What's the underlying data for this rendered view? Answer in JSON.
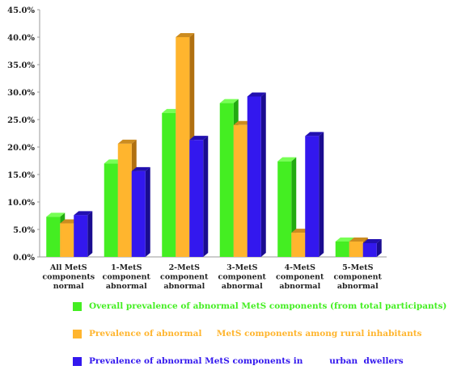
{
  "chart_data": {
    "type": "bar",
    "title": "",
    "xlabel": "",
    "ylabel": "",
    "ylim": [
      0,
      45
    ],
    "yticks": [
      "0.0%",
      "5.0%",
      "10.0%",
      "15.0%",
      "20.0%",
      "25.0%",
      "30.0%",
      "35.0%",
      "40.0%",
      "45.0%"
    ],
    "ytick_values": [
      0,
      5,
      10,
      15,
      20,
      25,
      30,
      35,
      40,
      45
    ],
    "categories": [
      [
        "All MetS",
        "components",
        "normal"
      ],
      [
        "1-MetS",
        "component",
        "abnormal"
      ],
      [
        "2-MetS",
        "component",
        "abnormal"
      ],
      [
        "3-MetS",
        "component",
        "abnormal"
      ],
      [
        "4-MetS",
        "component",
        "abnormal"
      ],
      [
        "5-MetS",
        "component",
        "abnormal"
      ]
    ],
    "series": [
      {
        "name": "Overall prevalence of abnormal MetS components (from total participants)",
        "color": "#44ee22",
        "side": "#22aa11",
        "top": "#77ff55",
        "values": [
          7.3,
          17.0,
          26.2,
          28.0,
          17.4,
          2.8
        ]
      },
      {
        "name": "Prevalence of abnormal     MetS components among rural inhabitants",
        "color": "#ffb52e",
        "side": "#b07010",
        "top": "#cc8c20",
        "values": [
          6.1,
          20.6,
          40.0,
          24.0,
          4.4,
          2.8
        ]
      },
      {
        "name": "Prevalence of abnormal MetS components in         urban  dwellers",
        "color": "#3318ee",
        "side": "#1a0c90",
        "top": "#2210b0",
        "values": [
          7.6,
          15.6,
          21.3,
          29.2,
          22.0,
          2.5
        ]
      }
    ],
    "grid": false,
    "legend_position": "bottom"
  }
}
